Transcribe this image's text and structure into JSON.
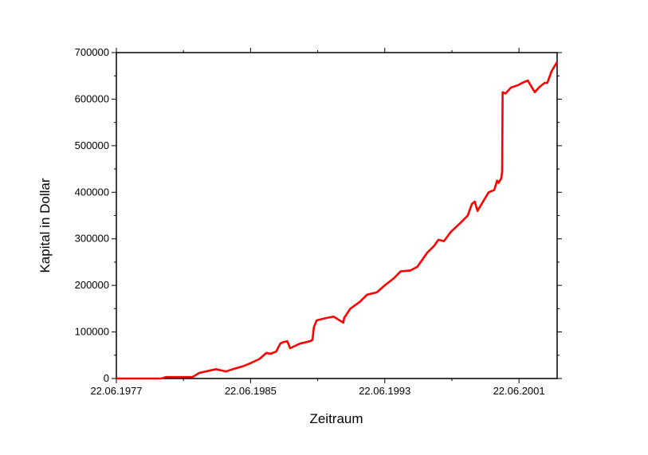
{
  "chart_data": {
    "type": "line",
    "title": "",
    "xlabel": "Zeitraum",
    "ylabel": "Kapital in Dollar",
    "x_tick_labels": [
      "22.06.1977",
      "22.06.1985",
      "22.06.1993",
      "22.06.2001"
    ],
    "y_tick_labels": [
      "0",
      "100000",
      "200000",
      "300000",
      "400000",
      "500000",
      "600000",
      "700000"
    ],
    "xlim": [
      "1977-06-22",
      "2003-10-01"
    ],
    "ylim": [
      0,
      700000
    ],
    "grid": false,
    "legend": "none",
    "line_color": "#ff0000",
    "series": [
      {
        "x": [
          "1977-06-22",
          "1980-03-01",
          "1980-06-01",
          "1981-01-01",
          "1982-01-01",
          "1982-06-01",
          "1983-06-01",
          "1983-09-01",
          "1984-01-01",
          "1984-06-01",
          "1985-01-01",
          "1985-06-22",
          "1986-01-01",
          "1986-06-01",
          "1986-09-01",
          "1987-01-01",
          "1987-04-01",
          "1987-06-01",
          "1987-09-01",
          "1987-11-01",
          "1988-06-01",
          "1989-01-01",
          "1989-03-01",
          "1989-04-01",
          "1989-06-01",
          "1990-01-01",
          "1990-06-01",
          "1991-01-01",
          "1991-01-20",
          "1991-06-01",
          "1992-01-01",
          "1992-06-01",
          "1993-01-01",
          "1993-06-22",
          "1994-01-01",
          "1994-06-01",
          "1995-01-01",
          "1995-06-01",
          "1996-01-01",
          "1996-06-01",
          "1996-09-01",
          "1997-01-01",
          "1997-06-01",
          "1998-01-01",
          "1998-06-01",
          "1998-09-01",
          "1998-11-01",
          "1999-01-01",
          "1999-06-01",
          "1999-09-01",
          "2000-01-01",
          "2000-03-01",
          "2000-04-01",
          "2000-06-01",
          "2000-06-20",
          "2000-07-01",
          "2000-09-01",
          "2001-01-01",
          "2001-06-01",
          "2001-09-01",
          "2002-01-01",
          "2002-06-01",
          "2002-09-01",
          "2003-01-01",
          "2003-03-01",
          "2003-06-01",
          "2003-10-01"
        ],
        "y": [
          0,
          0,
          3000,
          3000,
          3000,
          12000,
          20000,
          18000,
          15000,
          20000,
          26000,
          33000,
          42000,
          55000,
          53000,
          58000,
          75000,
          78000,
          80000,
          65000,
          75000,
          80000,
          83000,
          110000,
          125000,
          130000,
          133000,
          120000,
          130000,
          150000,
          165000,
          180000,
          185000,
          200000,
          215000,
          230000,
          232000,
          240000,
          270000,
          285000,
          298000,
          295000,
          315000,
          335000,
          350000,
          375000,
          380000,
          360000,
          385000,
          400000,
          405000,
          425000,
          420000,
          430000,
          445000,
          615000,
          612000,
          625000,
          630000,
          635000,
          640000,
          615000,
          625000,
          635000,
          635000,
          660000,
          680000
        ]
      }
    ]
  }
}
